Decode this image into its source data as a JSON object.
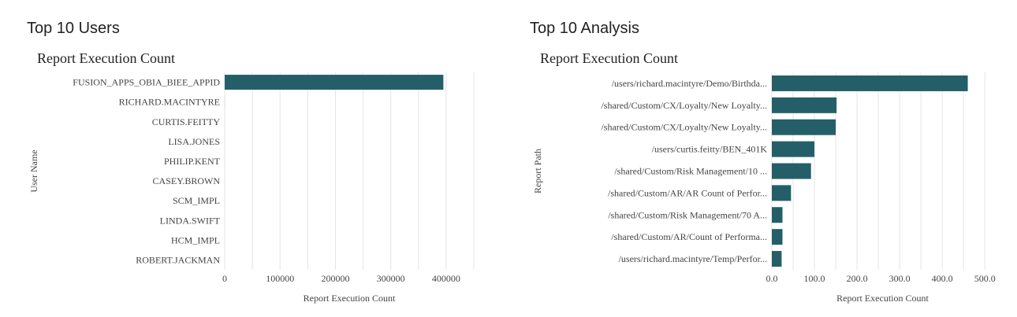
{
  "panels": [
    {
      "heading": "Top 10 Users"
    },
    {
      "heading": "Top 10 Analysis"
    }
  ],
  "colors": {
    "bar": "#245f69",
    "grid": "#e4e4e4",
    "text": "#444444"
  },
  "chart_data": [
    {
      "type": "bar",
      "orientation": "horizontal",
      "title": "Report Execution Count",
      "xlabel": "Report Execution Count",
      "ylabel": "User Name",
      "xlim": [
        0,
        450000
      ],
      "xticks": [
        0,
        100000,
        200000,
        300000,
        400000
      ],
      "xtick_labels": [
        "0",
        "100000",
        "200000",
        "300000",
        "400000"
      ],
      "categories": [
        "FUSION_APPS_OBIA_BIEE_APPID",
        "RICHARD.MACINTYRE",
        "CURTIS.FEITTY",
        "LISA.JONES",
        "PHILIP.KENT",
        "CASEY.BROWN",
        "SCM_IMPL",
        "LINDA.SWIFT",
        "HCM_IMPL",
        "ROBERT.JACKMAN"
      ],
      "values": [
        395000,
        80,
        40,
        30,
        20,
        15,
        10,
        8,
        5,
        3
      ]
    },
    {
      "type": "bar",
      "orientation": "horizontal",
      "title": "Report Execution Count",
      "xlabel": "Report Execution Count",
      "ylabel": "Report Path",
      "xlim": [
        0,
        520
      ],
      "xticks": [
        0,
        100,
        200,
        300,
        400,
        500
      ],
      "xtick_labels": [
        "0.0",
        "100.0",
        "200.0",
        "300.0",
        "400.0",
        "500.0"
      ],
      "categories": [
        "/users/richard.macintyre/Demo/Birthda...",
        "/shared/Custom/CX/Loyalty/New Loyalty...",
        "/shared/Custom/CX/Loyalty/New Loyalty...",
        "/users/curtis.feitty/BEN_401K",
        "/shared/Custom/Risk Management/10 ...",
        "/shared/Custom/AR/AR Count of Perfor...",
        "/shared/Custom/Risk Management/70 A...",
        "/shared/Custom/AR/Count of Performa...",
        "/users/richard.macintyre/Temp/Perfor..."
      ],
      "values": [
        460,
        152,
        150,
        100,
        92,
        45,
        25,
        25,
        23
      ]
    }
  ]
}
